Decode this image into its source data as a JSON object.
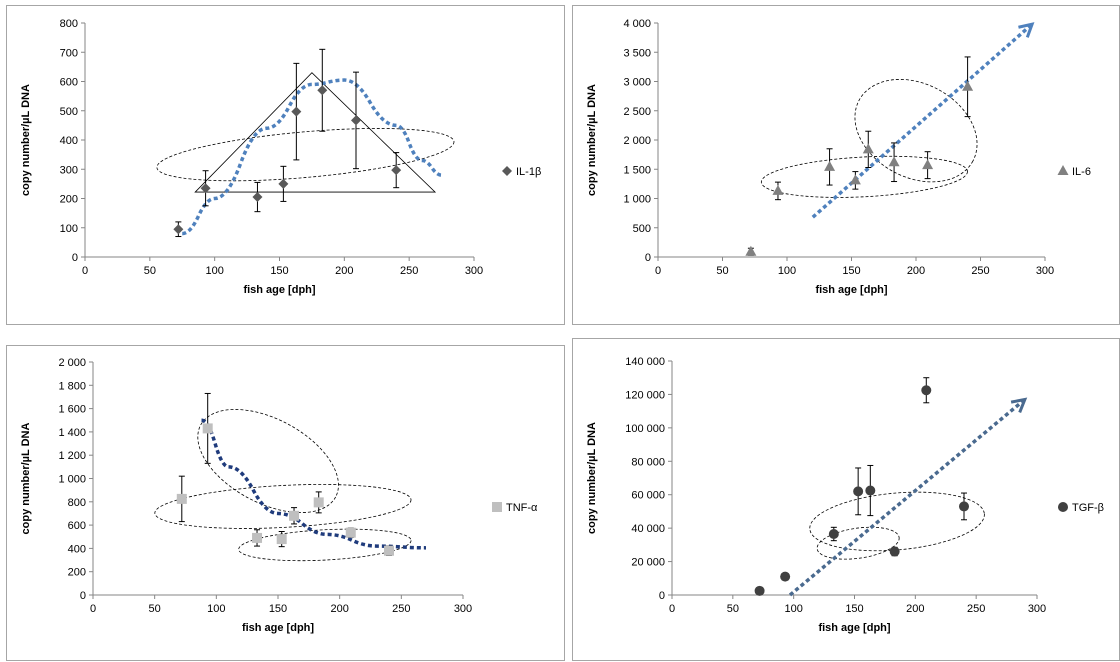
{
  "chart_data": [
    {
      "type": "scatter",
      "marker": "diamond",
      "marker_color": "#595959",
      "trend_color": "#4f81bd",
      "xlabel": "fish age [dph]",
      "ylabel": "copy number/µL DNA",
      "xlim": [
        0,
        300
      ],
      "ylim": [
        0,
        800
      ],
      "xticks": [
        0,
        50,
        100,
        150,
        200,
        250,
        300
      ],
      "yticks": [
        0,
        100,
        200,
        300,
        400,
        500,
        600,
        700,
        800
      ],
      "ytick_labels": [
        "0",
        "100",
        "200",
        "300",
        "400",
        "500",
        "600",
        "700",
        "800"
      ],
      "grid": false,
      "legend": "right",
      "series": [
        {
          "name": "IL-1β",
          "x": [
            72,
            93,
            133,
            153,
            163,
            183,
            209,
            240
          ],
          "y": [
            95,
            235,
            205,
            250,
            497,
            570,
            467,
            297
          ],
          "err": [
            25,
            60,
            50,
            60,
            165,
            140,
            165,
            60
          ]
        }
      ]
    },
    {
      "type": "scatter",
      "marker": "triangle",
      "marker_color": "#808080",
      "trend_color": "#4f81bd",
      "xlabel": "fish age [dph]",
      "ylabel": "copy number/µL DNA",
      "xlim": [
        0,
        300
      ],
      "ylim": [
        0,
        4000
      ],
      "xticks": [
        0,
        50,
        100,
        150,
        200,
        250,
        300
      ],
      "yticks": [
        0,
        500,
        1000,
        1500,
        2000,
        2500,
        3000,
        3500,
        4000
      ],
      "ytick_labels": [
        "0",
        "500",
        "1 000",
        "1 500",
        "2 000",
        "2 500",
        "3 000",
        "3 500",
        "4 000"
      ],
      "grid": false,
      "legend": "right",
      "series": [
        {
          "name": "IL-6",
          "x": [
            72,
            93,
            133,
            153,
            163,
            183,
            209,
            240
          ],
          "y": [
            90,
            1130,
            1540,
            1310,
            1840,
            1620,
            1570,
            2910
          ],
          "err": [
            60,
            150,
            310,
            150,
            310,
            330,
            230,
            510
          ]
        }
      ]
    },
    {
      "type": "scatter",
      "marker": "square",
      "marker_color": "#bfbfbf",
      "trend_color": "#1f3b7c",
      "xlabel": "fish age [dph]",
      "ylabel": "copy number/µL DNA",
      "xlim": [
        0,
        300
      ],
      "ylim": [
        0,
        2000
      ],
      "xticks": [
        0,
        50,
        100,
        150,
        200,
        250,
        300
      ],
      "yticks": [
        0,
        200,
        400,
        600,
        800,
        1000,
        1200,
        1400,
        1600,
        1800,
        2000
      ],
      "ytick_labels": [
        "0",
        "200",
        "400",
        "600",
        "800",
        "1 000",
        "1 200",
        "1 400",
        "1 600",
        "1 800",
        "2 000"
      ],
      "grid": false,
      "legend": "right",
      "series": [
        {
          "name": "TNF-α",
          "x": [
            72,
            93,
            133,
            153,
            163,
            183,
            209,
            240
          ],
          "y": [
            825,
            1430,
            490,
            480,
            680,
            795,
            535,
            380
          ],
          "err": [
            195,
            300,
            70,
            65,
            70,
            90,
            40,
            40
          ]
        }
      ]
    },
    {
      "type": "scatter",
      "marker": "circle",
      "marker_color": "#404040",
      "trend_color": "#4a6a8f",
      "xlabel": "fish age [dph]",
      "ylabel": "copy number/µL DNA",
      "xlim": [
        0,
        300
      ],
      "ylim": [
        0,
        140000
      ],
      "xticks": [
        0,
        50,
        100,
        150,
        200,
        250,
        300
      ],
      "yticks": [
        0,
        20000,
        40000,
        60000,
        80000,
        100000,
        120000,
        140000
      ],
      "ytick_labels": [
        "0",
        "20 000",
        "40 000",
        "60 000",
        "80 000",
        "100 000",
        "120 000",
        "140 000"
      ],
      "grid": false,
      "legend": "right",
      "series": [
        {
          "name": "TGF-β",
          "x": [
            72,
            93,
            133,
            153,
            163,
            183,
            209,
            240
          ],
          "y": [
            2500,
            11000,
            36500,
            62000,
            62500,
            26000,
            122500,
            53000
          ],
          "err": [
            0,
            0,
            4000,
            14000,
            15000,
            2500,
            7500,
            8000
          ]
        }
      ]
    }
  ]
}
